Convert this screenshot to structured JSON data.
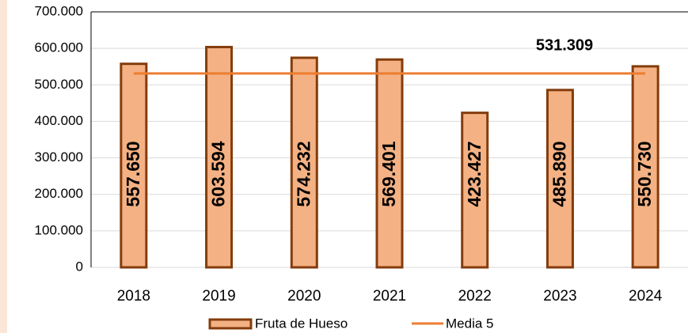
{
  "chart_data": {
    "type": "bar",
    "categories": [
      "2018",
      "2019",
      "2020",
      "2021",
      "2022",
      "2023",
      "2024"
    ],
    "series": [
      {
        "name": "Fruta de Hueso",
        "type": "bar",
        "color": "#f4b183",
        "edge_color": "#843c0c",
        "values": [
          557650,
          603594,
          574232,
          569401,
          423427,
          485890,
          550730
        ],
        "value_labels": [
          "557.650",
          "603.594",
          "574.232",
          "569.401",
          "423.427",
          "485.890",
          "550.730"
        ]
      },
      {
        "name": "Media 5",
        "type": "line",
        "color": "#ed7d31",
        "values": [
          531309,
          531309,
          531309,
          531309,
          531309,
          531309,
          531309
        ],
        "label": "531.309"
      }
    ],
    "ylim": [
      0,
      700000
    ],
    "yticks": [
      {
        "value": 0,
        "label": "0"
      },
      {
        "value": 100000,
        "label": "100.000"
      },
      {
        "value": 200000,
        "label": "200.000"
      },
      {
        "value": 300000,
        "label": "300.000"
      },
      {
        "value": 400000,
        "label": "400.000"
      },
      {
        "value": 500000,
        "label": "500.000"
      },
      {
        "value": 600000,
        "label": "600.000"
      },
      {
        "value": 700000,
        "label": "700.000"
      }
    ],
    "grid": true
  }
}
